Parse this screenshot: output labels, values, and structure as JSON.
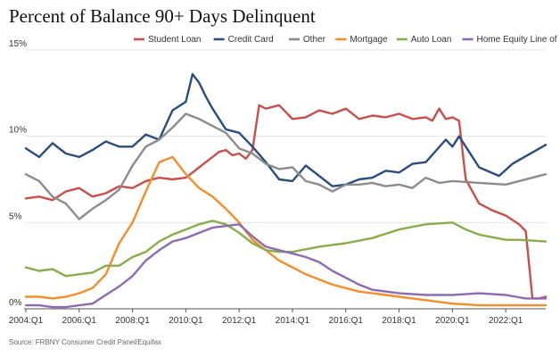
{
  "title": "Percent of Balance 90+ Days Delinquent",
  "source": "Source: FRBNY Consumer Credit Panel/Equifax",
  "chart_data": {
    "type": "line",
    "title": "Percent of Balance 90+ Days Delinquent",
    "xlabel": "",
    "ylabel": "",
    "ylim": [
      0,
      15
    ],
    "grid": true,
    "legend_position": "top",
    "y_ticks": [
      "0%",
      "5%",
      "10%",
      "15%"
    ],
    "y_tick_values": [
      0,
      5,
      10,
      15
    ],
    "x_ticks": [
      "2004:Q1",
      "2006:Q1",
      "2008:Q1",
      "2010:Q1",
      "2012:Q1",
      "2014:Q1",
      "2016:Q1",
      "2018:Q1",
      "2020:Q1",
      "2022:Q1"
    ],
    "x_tick_years": [
      2004,
      2006,
      2008,
      2010,
      2012,
      2014,
      2016,
      2018,
      2020,
      2022
    ],
    "x_start": "2004:Q1",
    "x_end": "2023:Q2",
    "series": [
      {
        "name": "Student Loan",
        "color": "#c8504b",
        "values": [
          6.4,
          6.5,
          6.3,
          6.8,
          7.0,
          6.5,
          6.7,
          7.1,
          7.0,
          7.4,
          7.6,
          7.5,
          7.6,
          7.9,
          8.2,
          8.5,
          8.8,
          9.1,
          9.2,
          8.9,
          9.0,
          8.7,
          9.2,
          11.8,
          11.6,
          11.8,
          11.4,
          11.0,
          11.1,
          11.5,
          11.3,
          11.6,
          11.0,
          11.2,
          11.1,
          11.3,
          11.0,
          11.1,
          10.9,
          11.6,
          11.0,
          11.1,
          10.9,
          7.5,
          6.8,
          6.1,
          5.7,
          5.4,
          4.9,
          4.5,
          0.6,
          0.6,
          0.7
        ],
        "x": [
          2004.0,
          2004.5,
          2005.0,
          2005.5,
          2006.0,
          2006.5,
          2007.0,
          2007.5,
          2008.0,
          2008.5,
          2009.0,
          2009.5,
          2010.0,
          2010.25,
          2010.5,
          2010.75,
          2011.0,
          2011.25,
          2011.5,
          2011.75,
          2012.0,
          2012.25,
          2012.5,
          2012.75,
          2013.0,
          2013.5,
          2013.75,
          2014.0,
          2014.5,
          2015.0,
          2015.5,
          2016.0,
          2016.5,
          2017.0,
          2017.5,
          2018.0,
          2018.5,
          2019.0,
          2019.25,
          2019.5,
          2019.75,
          2020.0,
          2020.25,
          2020.5,
          2020.75,
          2021.0,
          2021.5,
          2022.0,
          2022.5,
          2022.75,
          2023.0,
          2023.25,
          2023.5
        ]
      },
      {
        "name": "Credit Card",
        "color": "#2a4d7e",
        "values": [
          9.3,
          8.8,
          9.6,
          9.0,
          8.8,
          9.2,
          9.7,
          9.4,
          9.4,
          10.1,
          9.8,
          11.5,
          12.0,
          13.6,
          13.1,
          12.3,
          11.6,
          11.0,
          10.4,
          10.2,
          9.4,
          8.5,
          7.5,
          7.4,
          8.3,
          7.7,
          7.1,
          7.2,
          7.5,
          7.6,
          8.0,
          7.9,
          8.4,
          8.5,
          9.8,
          9.4,
          10.0,
          8.2,
          7.7,
          8.4,
          9.5
        ],
        "x": [
          2004.0,
          2004.5,
          2005.0,
          2005.5,
          2006.0,
          2006.5,
          2007.0,
          2007.5,
          2008.0,
          2008.5,
          2009.0,
          2009.5,
          2010.0,
          2010.25,
          2010.5,
          2010.75,
          2011.0,
          2011.25,
          2011.5,
          2012.0,
          2012.5,
          2013.0,
          2013.5,
          2014.0,
          2014.5,
          2015.0,
          2015.5,
          2016.0,
          2016.5,
          2017.0,
          2017.5,
          2018.0,
          2018.5,
          2019.0,
          2019.75,
          2020.0,
          2020.25,
          2021.0,
          2021.75,
          2022.25,
          2023.5
        ]
      },
      {
        "name": "Other",
        "color": "#8c8c8c",
        "values": [
          7.8,
          7.4,
          6.5,
          6.1,
          5.2,
          5.8,
          6.3,
          6.9,
          8.3,
          9.4,
          9.8,
          10.5,
          11.3,
          11.0,
          10.6,
          10.2,
          9.3,
          9.0,
          8.4,
          8.1,
          8.2,
          7.4,
          7.2,
          6.8,
          7.2,
          7.2,
          7.3,
          7.1,
          7.2,
          7.0,
          7.6,
          7.3,
          7.4,
          7.3,
          7.2,
          7.8
        ],
        "x": [
          2004.0,
          2004.5,
          2005.0,
          2005.5,
          2006.0,
          2006.5,
          2007.0,
          2007.5,
          2008.0,
          2008.5,
          2009.0,
          2009.5,
          2010.0,
          2010.5,
          2011.0,
          2011.5,
          2012.0,
          2012.5,
          2013.0,
          2013.5,
          2014.0,
          2014.5,
          2015.0,
          2015.5,
          2016.0,
          2016.5,
          2017.0,
          2017.5,
          2018.0,
          2018.5,
          2019.0,
          2019.5,
          2020.0,
          2021.0,
          2022.0,
          2023.5
        ]
      },
      {
        "name": "Mortgage",
        "color": "#f28e2b",
        "values": [
          0.7,
          0.7,
          0.6,
          0.7,
          0.9,
          1.2,
          2.0,
          3.8,
          5.0,
          6.8,
          8.5,
          8.8,
          7.8,
          7.0,
          6.5,
          5.8,
          5.0,
          4.0,
          3.4,
          2.8,
          2.4,
          2.0,
          1.7,
          1.4,
          1.2,
          1.0,
          0.9,
          0.7,
          0.5,
          0.3,
          0.2,
          0.2,
          0.2
        ],
        "x": [
          2004.0,
          2004.5,
          2005.0,
          2005.5,
          2006.0,
          2006.5,
          2007.0,
          2007.5,
          2008.0,
          2008.5,
          2009.0,
          2009.5,
          2010.0,
          2010.5,
          2011.0,
          2011.5,
          2012.0,
          2012.5,
          2013.0,
          2013.5,
          2014.0,
          2014.5,
          2015.0,
          2015.5,
          2016.0,
          2016.5,
          2017.0,
          2018.0,
          2019.0,
          2020.0,
          2021.0,
          2022.0,
          2023.5
        ]
      },
      {
        "name": "Auto Loan",
        "color": "#8aac4a",
        "values": [
          2.4,
          2.2,
          2.3,
          1.9,
          2.0,
          2.1,
          2.5,
          2.5,
          3.0,
          3.3,
          3.9,
          4.3,
          4.6,
          4.9,
          5.1,
          4.9,
          4.4,
          3.8,
          3.4,
          3.3,
          3.3,
          3.6,
          3.8,
          4.1,
          4.6,
          4.9,
          5.0,
          4.6,
          4.3,
          4.0,
          4.0,
          3.9
        ],
        "x": [
          2004.0,
          2004.5,
          2005.0,
          2005.5,
          2006.0,
          2006.5,
          2007.0,
          2007.5,
          2008.0,
          2008.5,
          2009.0,
          2009.5,
          2010.0,
          2010.5,
          2011.0,
          2011.5,
          2012.0,
          2012.5,
          2013.0,
          2013.5,
          2014.0,
          2015.0,
          2016.0,
          2017.0,
          2018.0,
          2019.0,
          2020.0,
          2020.5,
          2021.0,
          2022.0,
          2022.5,
          2023.5
        ]
      },
      {
        "name": "Home Equity Line of Credit",
        "color": "#8c6bb1",
        "values": [
          0.2,
          0.2,
          0.1,
          0.1,
          0.2,
          0.3,
          0.8,
          1.3,
          1.9,
          2.8,
          3.4,
          3.9,
          4.1,
          4.4,
          4.7,
          4.8,
          4.9,
          4.2,
          3.6,
          3.4,
          3.2,
          3.0,
          2.7,
          2.2,
          1.8,
          1.4,
          1.1,
          0.9,
          0.8,
          0.8,
          0.9,
          0.8,
          0.6,
          0.6
        ],
        "x": [
          2004.0,
          2004.5,
          2005.0,
          2005.5,
          2006.0,
          2006.5,
          2007.0,
          2007.5,
          2008.0,
          2008.5,
          2009.0,
          2009.5,
          2010.0,
          2010.5,
          2011.0,
          2011.5,
          2012.0,
          2012.5,
          2013.0,
          2013.5,
          2014.0,
          2014.5,
          2015.0,
          2015.5,
          2016.0,
          2016.5,
          2017.0,
          2018.0,
          2019.0,
          2020.0,
          2021.0,
          2022.0,
          2022.75,
          2023.5
        ]
      }
    ]
  }
}
